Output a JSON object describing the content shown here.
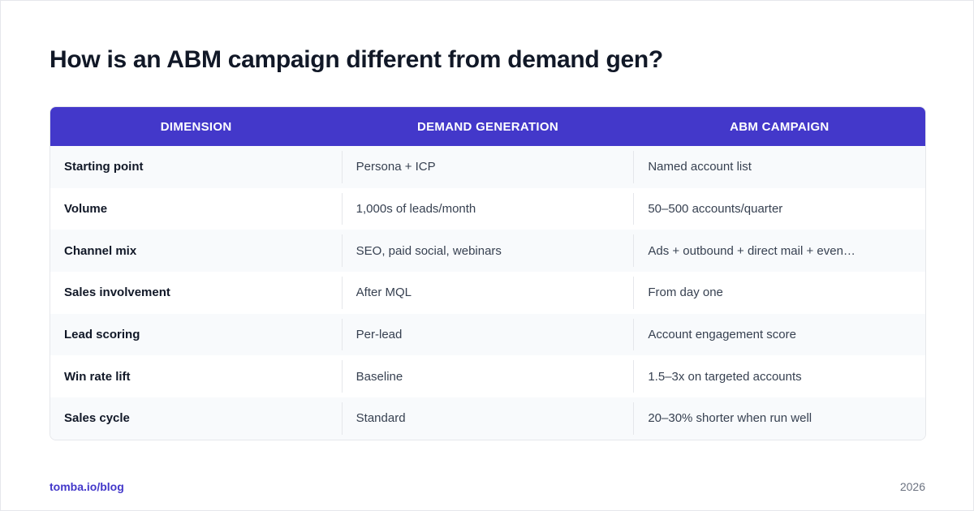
{
  "header": {
    "title": "How is an ABM campaign different from demand gen?"
  },
  "table": {
    "columns": [
      "DIMENSION",
      "DEMAND GENERATION",
      "ABM CAMPAIGN"
    ],
    "rows": [
      [
        "Starting point",
        "Persona + ICP",
        "Named account list"
      ],
      [
        "Volume",
        "1,000s of leads/month",
        "50–500 accounts/quarter"
      ],
      [
        "Channel mix",
        "SEO, paid social, webinars",
        "Ads + outbound + direct mail + even…"
      ],
      [
        "Sales involvement",
        "After MQL",
        "From day one"
      ],
      [
        "Lead scoring",
        "Per-lead",
        "Account engagement score"
      ],
      [
        "Win rate lift",
        "Baseline",
        "1.5–3x on targeted accounts"
      ],
      [
        "Sales cycle",
        "Standard",
        "20–30% shorter when run well"
      ]
    ]
  },
  "footer": {
    "source": "tomba.io/blog",
    "year": "2026"
  }
}
